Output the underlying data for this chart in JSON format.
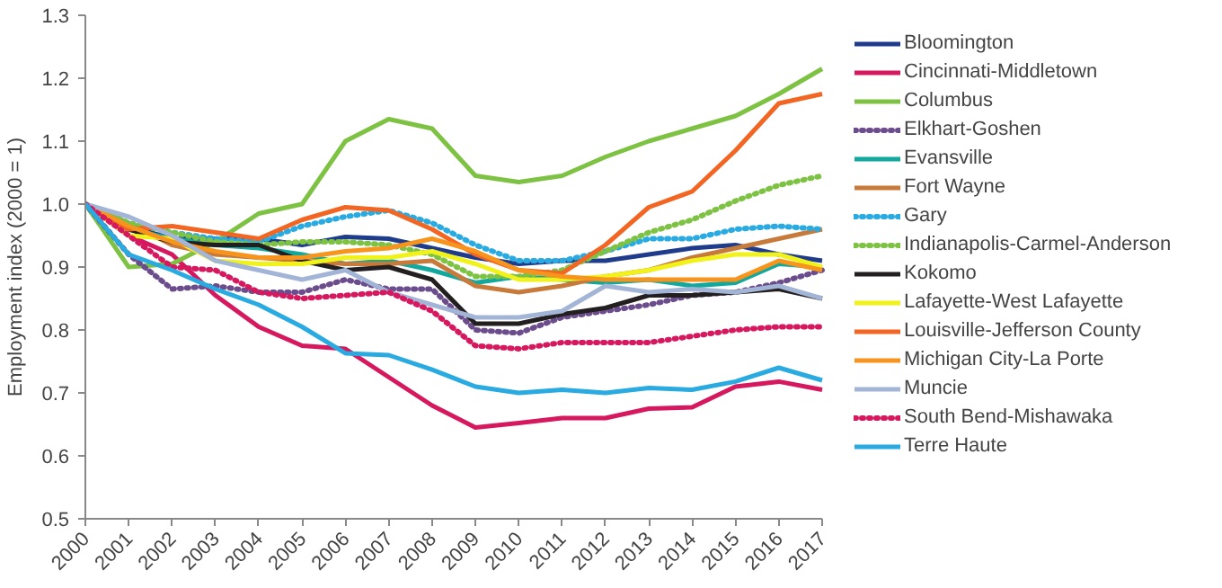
{
  "chart_data": {
    "type": "line",
    "ylabel": "Employment index (2000 = 1)",
    "categories": [
      "2000",
      "2001",
      "2002",
      "2003",
      "2004",
      "2005",
      "2006",
      "2007",
      "2008",
      "2009",
      "2010",
      "2011",
      "2012",
      "2013",
      "2014",
      "2015",
      "2016",
      "2017"
    ],
    "ylim": [
      0.5,
      1.3
    ],
    "yticks": [
      0.5,
      0.6,
      0.7,
      0.8,
      0.9,
      {
        "value": 1,
        "label": "1.0"
      },
      1.1,
      1.2,
      1.3
    ],
    "grid": false,
    "legend": "right",
    "marker": "none",
    "series": [
      {
        "name": "Bloomington",
        "color": "#1f3c8c",
        "line_style": "solid",
        "values": [
          1.0,
          0.965,
          0.945,
          0.945,
          0.945,
          0.935,
          0.948,
          0.945,
          0.93,
          0.915,
          0.905,
          0.91,
          0.91,
          0.92,
          0.93,
          0.935,
          0.92,
          0.91
        ]
      },
      {
        "name": "Cincinnati-Middletown",
        "color": "#d6185e",
        "line_style": "solid",
        "values": [
          1.0,
          0.95,
          0.92,
          0.855,
          0.805,
          0.775,
          0.77,
          0.725,
          0.68,
          0.645,
          0.652,
          0.66,
          0.66,
          0.675,
          0.677,
          0.71,
          0.718,
          0.705
        ]
      },
      {
        "name": "Columbus",
        "color": "#7dc242",
        "line_style": "solid",
        "values": [
          1.0,
          0.9,
          0.905,
          0.94,
          0.985,
          1.0,
          1.1,
          1.135,
          1.12,
          1.045,
          1.035,
          1.045,
          1.075,
          1.1,
          1.12,
          1.14,
          1.175,
          1.215
        ]
      },
      {
        "name": "Elkhart-Goshen",
        "color": "#6b4c8c",
        "line_style": "dotted",
        "values": [
          1.0,
          0.92,
          0.865,
          0.87,
          0.86,
          0.86,
          0.88,
          0.865,
          0.865,
          0.8,
          0.795,
          0.82,
          0.83,
          0.84,
          0.855,
          0.86,
          0.875,
          0.895
        ]
      },
      {
        "name": "Evansville",
        "color": "#13a89e",
        "line_style": "solid",
        "values": [
          1.0,
          0.96,
          0.945,
          0.935,
          0.93,
          0.92,
          0.905,
          0.91,
          0.895,
          0.875,
          0.885,
          0.88,
          0.875,
          0.88,
          0.87,
          0.875,
          0.905,
          0.9
        ]
      },
      {
        "name": "Fort Wayne",
        "color": "#c87a3a",
        "line_style": "solid",
        "values": [
          1.0,
          0.97,
          0.935,
          0.92,
          0.915,
          0.91,
          0.905,
          0.905,
          0.91,
          0.87,
          0.86,
          0.87,
          0.885,
          0.895,
          0.915,
          0.93,
          0.945,
          0.96
        ]
      },
      {
        "name": "Gary",
        "color": "#29abe2",
        "line_style": "dotted",
        "values": [
          1.0,
          0.97,
          0.955,
          0.945,
          0.94,
          0.965,
          0.98,
          0.99,
          0.97,
          0.935,
          0.91,
          0.91,
          0.925,
          0.945,
          0.945,
          0.96,
          0.965,
          0.96
        ]
      },
      {
        "name": "Indianapolis-Carmel-Anderson",
        "color": "#7dc242",
        "line_style": "dotted",
        "values": [
          1.0,
          0.97,
          0.955,
          0.94,
          0.935,
          0.94,
          0.94,
          0.935,
          0.92,
          0.885,
          0.885,
          0.895,
          0.925,
          0.955,
          0.975,
          1.005,
          1.03,
          1.045
        ]
      },
      {
        "name": "Kokomo",
        "color": "#231f20",
        "line_style": "solid",
        "values": [
          1.0,
          0.96,
          0.94,
          0.935,
          0.935,
          0.91,
          0.895,
          0.9,
          0.88,
          0.81,
          0.81,
          0.825,
          0.835,
          0.855,
          0.855,
          0.86,
          0.865,
          0.85
        ]
      },
      {
        "name": "Lafayette-West Lafayette",
        "color": "#f2f21b",
        "line_style": "solid",
        "values": [
          1.0,
          0.95,
          0.945,
          0.91,
          0.905,
          0.905,
          0.915,
          0.915,
          0.925,
          0.905,
          0.88,
          0.88,
          0.885,
          0.895,
          0.91,
          0.92,
          0.92,
          0.9
        ]
      },
      {
        "name": "Louisville-Jefferson County",
        "color": "#f26522",
        "line_style": "solid",
        "values": [
          1.0,
          0.96,
          0.965,
          0.955,
          0.945,
          0.975,
          0.995,
          0.99,
          0.96,
          0.92,
          0.895,
          0.89,
          0.935,
          0.995,
          1.02,
          1.085,
          1.16,
          1.175
        ]
      },
      {
        "name": "Michigan City-La Porte",
        "color": "#f7941d",
        "line_style": "solid",
        "values": [
          1.0,
          0.965,
          0.94,
          0.925,
          0.915,
          0.915,
          0.925,
          0.93,
          0.945,
          0.925,
          0.895,
          0.885,
          0.88,
          0.88,
          0.88,
          0.88,
          0.91,
          0.895
        ]
      },
      {
        "name": "Muncie",
        "color": "#a3b5d6",
        "line_style": "solid",
        "values": [
          1.0,
          0.98,
          0.95,
          0.91,
          0.895,
          0.88,
          0.895,
          0.86,
          0.84,
          0.82,
          0.82,
          0.83,
          0.87,
          0.86,
          0.865,
          0.86,
          0.87,
          0.85
        ]
      },
      {
        "name": "South Bend-Mishawaka",
        "color": "#d6185e",
        "line_style": "dotted",
        "values": [
          1.0,
          0.95,
          0.9,
          0.895,
          0.86,
          0.85,
          0.855,
          0.86,
          0.83,
          0.775,
          0.77,
          0.78,
          0.78,
          0.78,
          0.79,
          0.8,
          0.805,
          0.805
        ]
      },
      {
        "name": "Terre Haute",
        "color": "#29aae1",
        "line_style": "solid",
        "values": [
          1.0,
          0.92,
          0.895,
          0.865,
          0.84,
          0.805,
          0.763,
          0.76,
          0.737,
          0.71,
          0.7,
          0.705,
          0.7,
          0.708,
          0.705,
          0.718,
          0.74,
          0.72
        ]
      }
    ]
  }
}
